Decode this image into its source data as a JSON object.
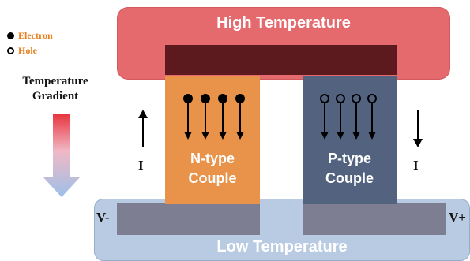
{
  "legend": {
    "electron_label": "Electron",
    "hole_label": "Hole"
  },
  "gradient_label": "Temperature Gradient",
  "hot_side": {
    "label": "High Temperature",
    "color": "#e46a6e",
    "inner_color": "#5c1a1e"
  },
  "cold_side": {
    "label": "Low Temperature",
    "color": "#b9cbe2",
    "strip_color": "#7e7e93"
  },
  "n_couple": {
    "label_line1": "N-type",
    "label_line2": "Couple",
    "color": "#e9934a",
    "carrier": "electron"
  },
  "p_couple": {
    "label_line1": "P-type",
    "label_line2": "Couple",
    "color": "#53637f",
    "carrier": "hole"
  },
  "current": {
    "left_label": "I",
    "left_direction": "up",
    "right_label": "I",
    "right_direction": "down"
  },
  "terminals": {
    "negative": "V-",
    "positive": "V+"
  }
}
